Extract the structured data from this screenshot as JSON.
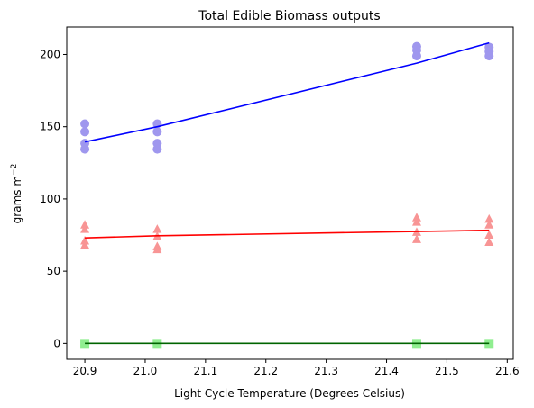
{
  "chart_data": {
    "type": "scatter",
    "title": "Total Edible Biomass outputs",
    "xlabel": "Light Cycle Temperature (Degrees Celsius)",
    "ylabel_main": "grams m",
    "ylabel_sup": "−2",
    "xlim": [
      20.87,
      21.61
    ],
    "ylim": [
      -11,
      219
    ],
    "x_ticks": [
      20.9,
      21.0,
      21.1,
      21.2,
      21.3,
      21.4,
      21.5,
      21.6
    ],
    "x_tick_labels": [
      "20.9",
      "21.0",
      "21.1",
      "21.2",
      "21.3",
      "21.4",
      "21.5",
      "21.6"
    ],
    "y_ticks": [
      0,
      50,
      100,
      150,
      200
    ],
    "y_tick_labels": [
      "0",
      "50",
      "100",
      "150",
      "200"
    ],
    "grid": false,
    "legend": "none",
    "series": [
      {
        "marker": "circle",
        "color": "#9f97ee",
        "points": [
          [
            20.9,
            152
          ],
          [
            20.9,
            146.5
          ],
          [
            20.9,
            138.5
          ],
          [
            20.9,
            134.5
          ],
          [
            21.02,
            152
          ],
          [
            21.02,
            146.5
          ],
          [
            21.02,
            138.5
          ],
          [
            21.02,
            134.5
          ],
          [
            21.45,
            205.5
          ],
          [
            21.45,
            203
          ],
          [
            21.45,
            199
          ],
          [
            21.57,
            205
          ],
          [
            21.57,
            202
          ],
          [
            21.57,
            199
          ]
        ],
        "fit_color": "#0000ff",
        "fit": [
          [
            20.9,
            139.5
          ],
          [
            21.02,
            150
          ],
          [
            21.45,
            194
          ],
          [
            21.57,
            208
          ]
        ]
      },
      {
        "marker": "triangle",
        "color": "#f89595",
        "points": [
          [
            20.9,
            82
          ],
          [
            20.9,
            79
          ],
          [
            20.9,
            71
          ],
          [
            20.9,
            68
          ],
          [
            21.02,
            79
          ],
          [
            21.02,
            74
          ],
          [
            21.02,
            67
          ],
          [
            21.02,
            65
          ],
          [
            21.45,
            87
          ],
          [
            21.45,
            84
          ],
          [
            21.45,
            77
          ],
          [
            21.45,
            72
          ],
          [
            21.57,
            86
          ],
          [
            21.57,
            82
          ],
          [
            21.57,
            75
          ],
          [
            21.57,
            70
          ]
        ],
        "fit_color": "#ff0000",
        "fit": [
          [
            20.9,
            73
          ],
          [
            21.02,
            74.5
          ],
          [
            21.45,
            77.5
          ],
          [
            21.57,
            78.3
          ]
        ]
      },
      {
        "marker": "square",
        "color": "#90ee90",
        "points": [
          [
            20.9,
            0
          ],
          [
            21.02,
            0
          ],
          [
            21.45,
            0
          ],
          [
            21.57,
            0
          ]
        ],
        "fit_color": "#006400",
        "fit": [
          [
            20.9,
            0
          ],
          [
            21.02,
            0
          ],
          [
            21.45,
            0
          ],
          [
            21.57,
            0
          ]
        ]
      }
    ]
  }
}
